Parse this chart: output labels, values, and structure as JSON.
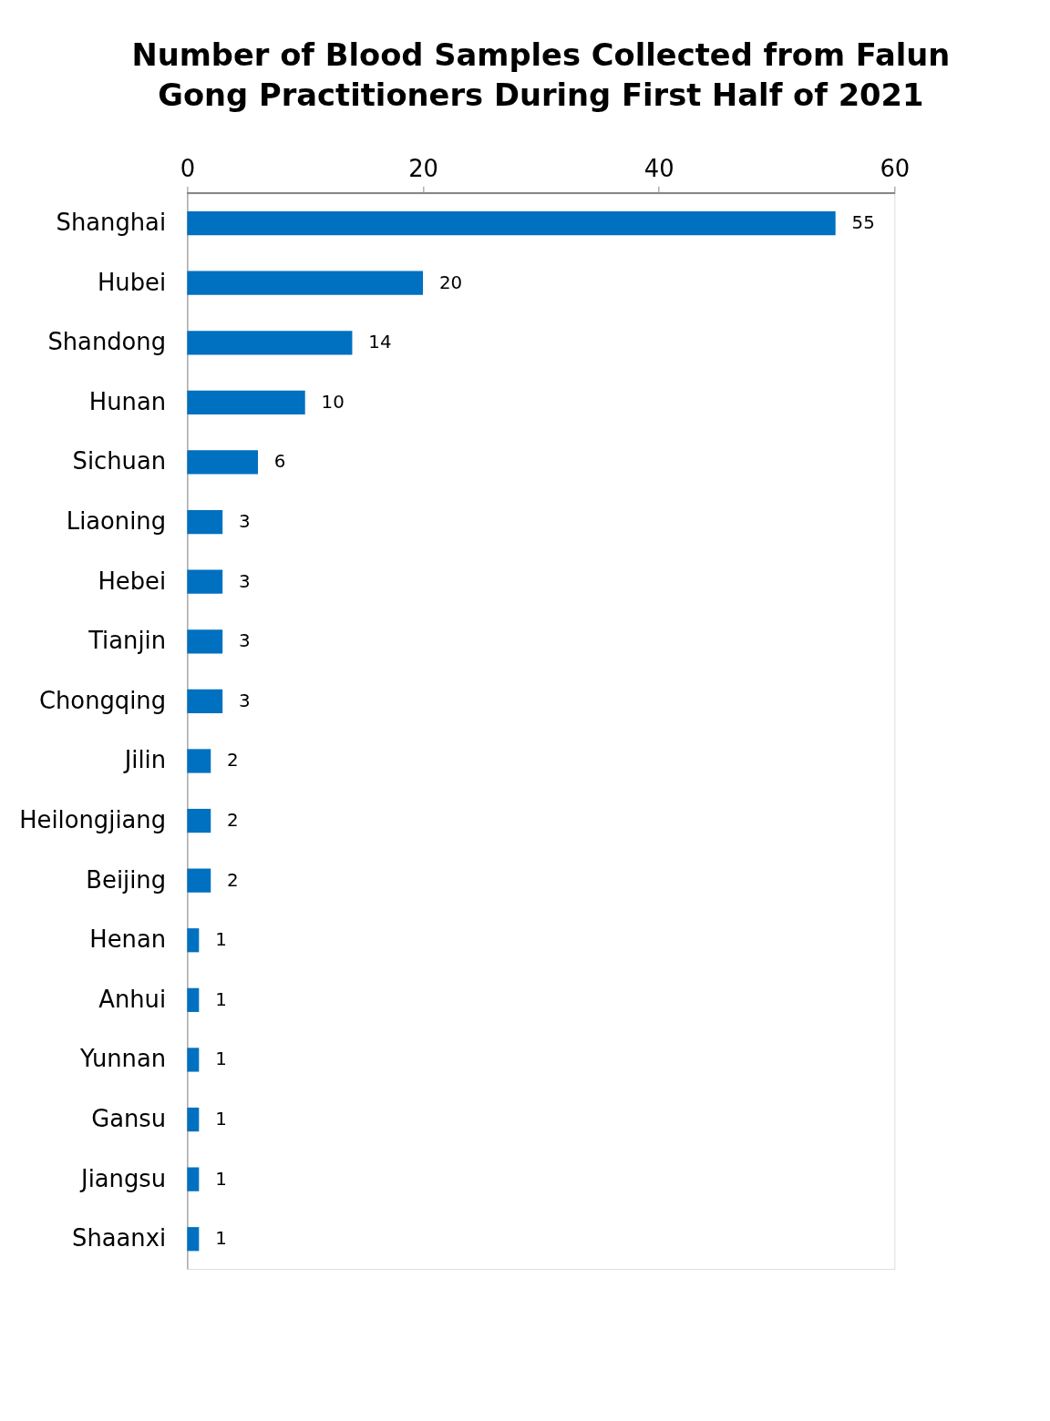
{
  "chart_data": {
    "type": "bar",
    "orientation": "horizontal",
    "title": "Number of Blood Samples Collected from Falun Gong Practitioners During First Half of 2021",
    "categories": [
      "Shanghai",
      "Hubei",
      "Shandong",
      "Hunan",
      "Sichuan",
      "Liaoning",
      "Hebei",
      "Tianjin",
      "Chongqing",
      "Jilin",
      "Heilongjiang",
      "Beijing",
      "Henan",
      "Anhui",
      "Yunnan",
      "Gansu",
      "Jiangsu",
      "Shaanxi"
    ],
    "values": [
      55,
      20,
      14,
      10,
      6,
      3,
      3,
      3,
      3,
      2,
      2,
      2,
      1,
      1,
      1,
      1,
      1,
      1
    ],
    "color": "#0070c0",
    "xlim": [
      0,
      60
    ],
    "xticks": [
      0,
      20,
      40,
      60
    ],
    "grid": false,
    "data_labels": true
  }
}
